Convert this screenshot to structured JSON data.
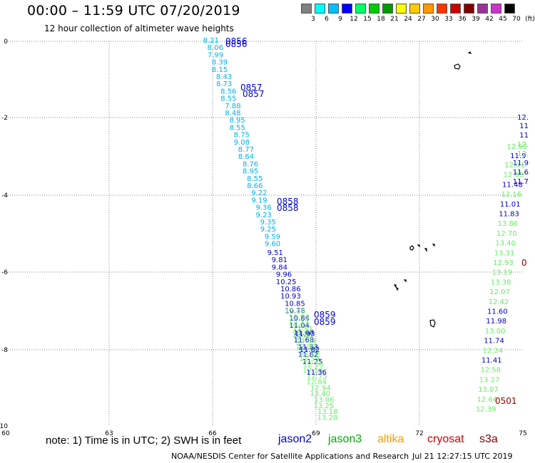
{
  "header": {
    "title": "00:00 – 11:59 UTC 07/20/2019",
    "subtitle": "12 hour collection of altimeter wave heights"
  },
  "legend": {
    "colors": [
      "#808080",
      "#00ffff",
      "#00bfff",
      "#0000ff",
      "#00ff66",
      "#00cc00",
      "#009900",
      "#ffff00",
      "#ffcc00",
      "#ff9900",
      "#ff3300",
      "#cc0000",
      "#800000",
      "#993399",
      "#cc33cc",
      "#000000"
    ],
    "labels": [
      "3",
      "6",
      "9",
      "12",
      "15",
      "18",
      "21",
      "24",
      "27",
      "30",
      "33",
      "36",
      "39",
      "42",
      "45",
      "70",
      "(ft)"
    ]
  },
  "map": {
    "x_ticks": [
      "60",
      "63",
      "66",
      "69",
      "72",
      "75"
    ],
    "y_ticks": [
      "0",
      "-2",
      "-4",
      "-6",
      "-8",
      "-10"
    ]
  },
  "track_main": {
    "cyan_swh": [
      "8.21",
      "8.06",
      "7.99",
      "8.39",
      "8.15",
      "8.43",
      "8.73",
      "8.56",
      "8.55",
      "7.88",
      "8.48",
      "8.95",
      "8.55",
      "8.75",
      "9.08",
      "8.77",
      "8.64",
      "8.76",
      "8.95",
      "8.55",
      "8.66",
      "9.22",
      "9.19",
      "9.36",
      "9.23",
      "9.35",
      "9.25",
      "9.59",
      "9.60"
    ],
    "blue_swh": [
      "9.51",
      "9.81",
      "9.84",
      "9.96",
      "10.25",
      "10.86",
      "10.93",
      "10.85",
      "10.78",
      "10.84",
      "11.04",
      "11.68",
      "11.68",
      "11.83",
      "11.82",
      "11.25"
    ],
    "green_swh": [
      "12.48",
      "12.56",
      "12.33",
      "12.51",
      "13.20",
      "13.03",
      "13.00",
      "12.28",
      "12.59",
      "12.66",
      "12.56",
      "12.75",
      "12.84",
      "12.94",
      "13.40",
      "13.06",
      "13.25",
      "13.18",
      "13.28"
    ],
    "green_blue_swh": [
      "11.93",
      "11.82",
      "11.36"
    ],
    "times": [
      "0856",
      "0857",
      "0858",
      "0859"
    ]
  },
  "track_east": {
    "values": [
      "12.93",
      "11.9",
      "12.01",
      "12.85",
      "11.48",
      "12.16",
      "11.01",
      "11.83",
      "13.86",
      "12.70",
      "13.40",
      "13.31",
      "12.93",
      "13.19",
      "13.38",
      "12.07",
      "12.42",
      "11.60",
      "11.98",
      "13.00",
      "11.74",
      "12.24",
      "11.41",
      "12.58",
      "13.27",
      "13.07",
      "12.64",
      "12.39"
    ],
    "time": "0501",
    "edge_values": [
      "12.",
      "11",
      "11",
      "12.",
      "12.",
      "11.9",
      "11.6",
      "11.7"
    ]
  },
  "notes": {
    "text": "note:  1) Time is in UTC;  2) SWH is in feet",
    "satellites": [
      {
        "name": "jason2",
        "color": "#0000cc"
      },
      {
        "name": "jason3",
        "color": "#00aa00"
      },
      {
        "name": "altika",
        "color": "#ff9900"
      },
      {
        "name": "cryosat",
        "color": "#cc0000"
      },
      {
        "name": "s3a",
        "color": "#800000"
      }
    ]
  },
  "footer": {
    "credit": "NOAA/NESDIS Center for Satellite Applications and Research",
    "timestamp": "Jul 21 12:27:15 UTC 2019"
  }
}
